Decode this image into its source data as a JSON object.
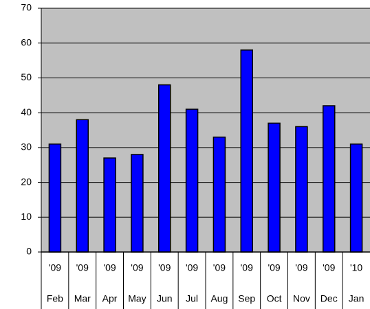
{
  "chart_data": {
    "type": "bar",
    "categories": [
      "Feb",
      "Mar",
      "Apr",
      "May",
      "Jun",
      "Jul",
      "Aug",
      "Sep",
      "Oct",
      "Nov",
      "Dec",
      "Jan"
    ],
    "years": [
      "'09",
      "'09",
      "'09",
      "'09",
      "'09",
      "'09",
      "'09",
      "'09",
      "'09",
      "'09",
      "'09",
      "'10"
    ],
    "values": [
      31,
      38,
      27,
      28,
      48,
      41,
      33,
      58,
      37,
      36,
      42,
      31
    ],
    "color": "#0000ff",
    "ylim": [
      0,
      70
    ],
    "yticks": [
      0,
      10,
      20,
      30,
      40,
      50,
      60,
      70
    ],
    "grid": true
  }
}
